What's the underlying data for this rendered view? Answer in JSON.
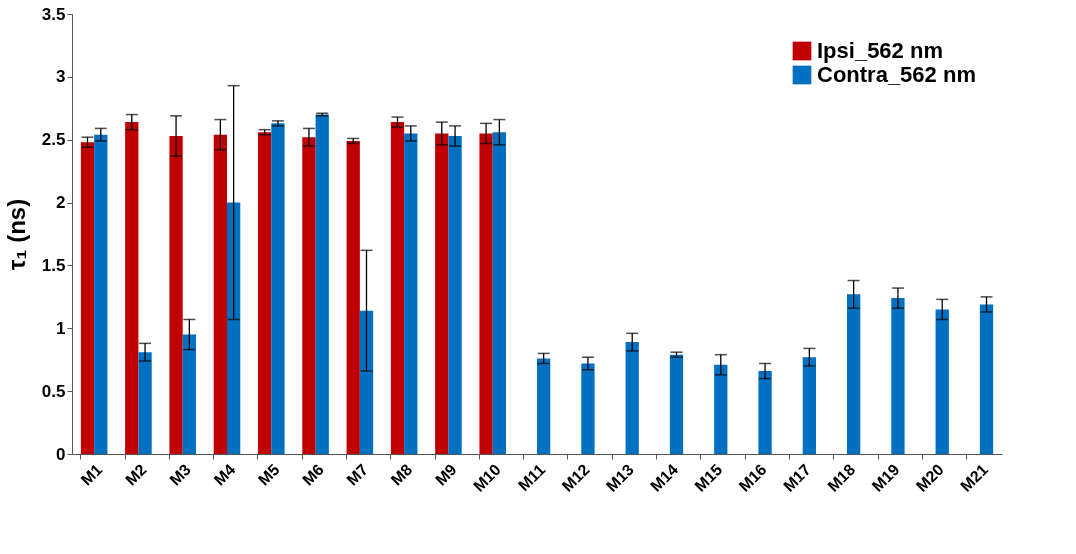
{
  "chart_data": {
    "type": "bar",
    "ylabel": "τ₁ (ns)",
    "categories": [
      "M1",
      "M2",
      "M3",
      "M4",
      "M5",
      "M6",
      "M7",
      "M8",
      "M9",
      "M10",
      "M11",
      "M12",
      "M13",
      "M14",
      "M15",
      "M16",
      "M17",
      "M18",
      "M19",
      "M20",
      "M21"
    ],
    "series": [
      {
        "name": "Ipsi_562 nm",
        "color": "#c00000",
        "values": [
          2.48,
          2.64,
          2.53,
          2.54,
          2.56,
          2.52,
          2.49,
          2.64,
          2.55,
          2.55,
          null,
          null,
          null,
          null,
          null,
          null,
          null,
          null,
          null,
          null,
          null
        ],
        "errors": [
          0.04,
          0.06,
          0.16,
          0.12,
          0.02,
          0.07,
          0.02,
          0.04,
          0.09,
          0.08,
          null,
          null,
          null,
          null,
          null,
          null,
          null,
          null,
          null,
          null,
          null
        ]
      },
      {
        "name": "Contra_562 nm",
        "color": "#0070c0",
        "values": [
          2.54,
          0.81,
          0.95,
          2.0,
          2.63,
          2.7,
          1.14,
          2.55,
          2.53,
          2.56,
          0.76,
          0.72,
          0.89,
          0.79,
          0.71,
          0.66,
          0.77,
          1.27,
          1.24,
          1.15,
          1.19
        ],
        "errors": [
          0.05,
          0.07,
          0.12,
          0.93,
          0.02,
          0.01,
          0.48,
          0.06,
          0.08,
          0.1,
          0.04,
          0.05,
          0.07,
          0.02,
          0.08,
          0.06,
          0.07,
          0.11,
          0.08,
          0.08,
          0.06
        ]
      }
    ],
    "ylim": [
      0,
      3.5
    ],
    "yticks": [
      0,
      0.5,
      1,
      1.5,
      2,
      2.5,
      3,
      3.5
    ],
    "grid": false,
    "legend": "top right"
  }
}
